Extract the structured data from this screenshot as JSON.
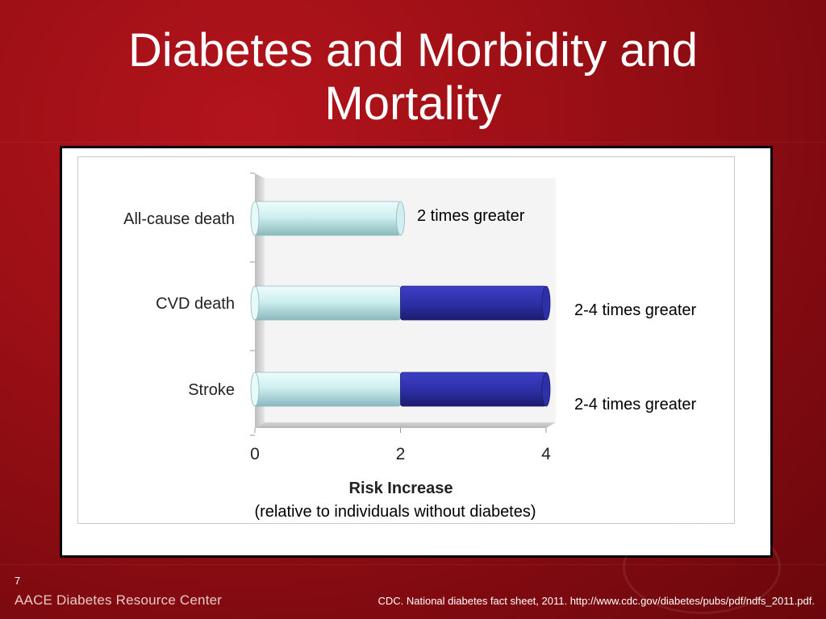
{
  "slide": {
    "title": "Diabetes and Morbidity and Mortality",
    "number": "7",
    "brand": "AACE Diabetes Resource Center",
    "citation": "CDC. National diabetes fact sheet, 2011. http://www.cdc.gov/diabetes/pubs/pdf/ndfs_2011.pdf."
  },
  "colors": {
    "background": "#9a0f15",
    "base_bar": "#cfeff0",
    "range_bar": "#2e30a8"
  },
  "chart_data": {
    "type": "bar",
    "orientation": "horizontal",
    "categories": [
      "All-cause death",
      "CVD death",
      "Stroke"
    ],
    "series": [
      {
        "values": [
          2,
          2,
          2
        ]
      },
      {
        "values": [
          0,
          2,
          2
        ]
      }
    ],
    "annotations": [
      "2 times greater",
      "2-4 times greater",
      "2-4 times greater"
    ],
    "xlabel": "Risk Increase",
    "subtitle": "(relative to individuals without diabetes)",
    "xticks": [
      "0",
      "2",
      "4"
    ],
    "xlim": [
      0,
      4
    ],
    "grid": false
  }
}
